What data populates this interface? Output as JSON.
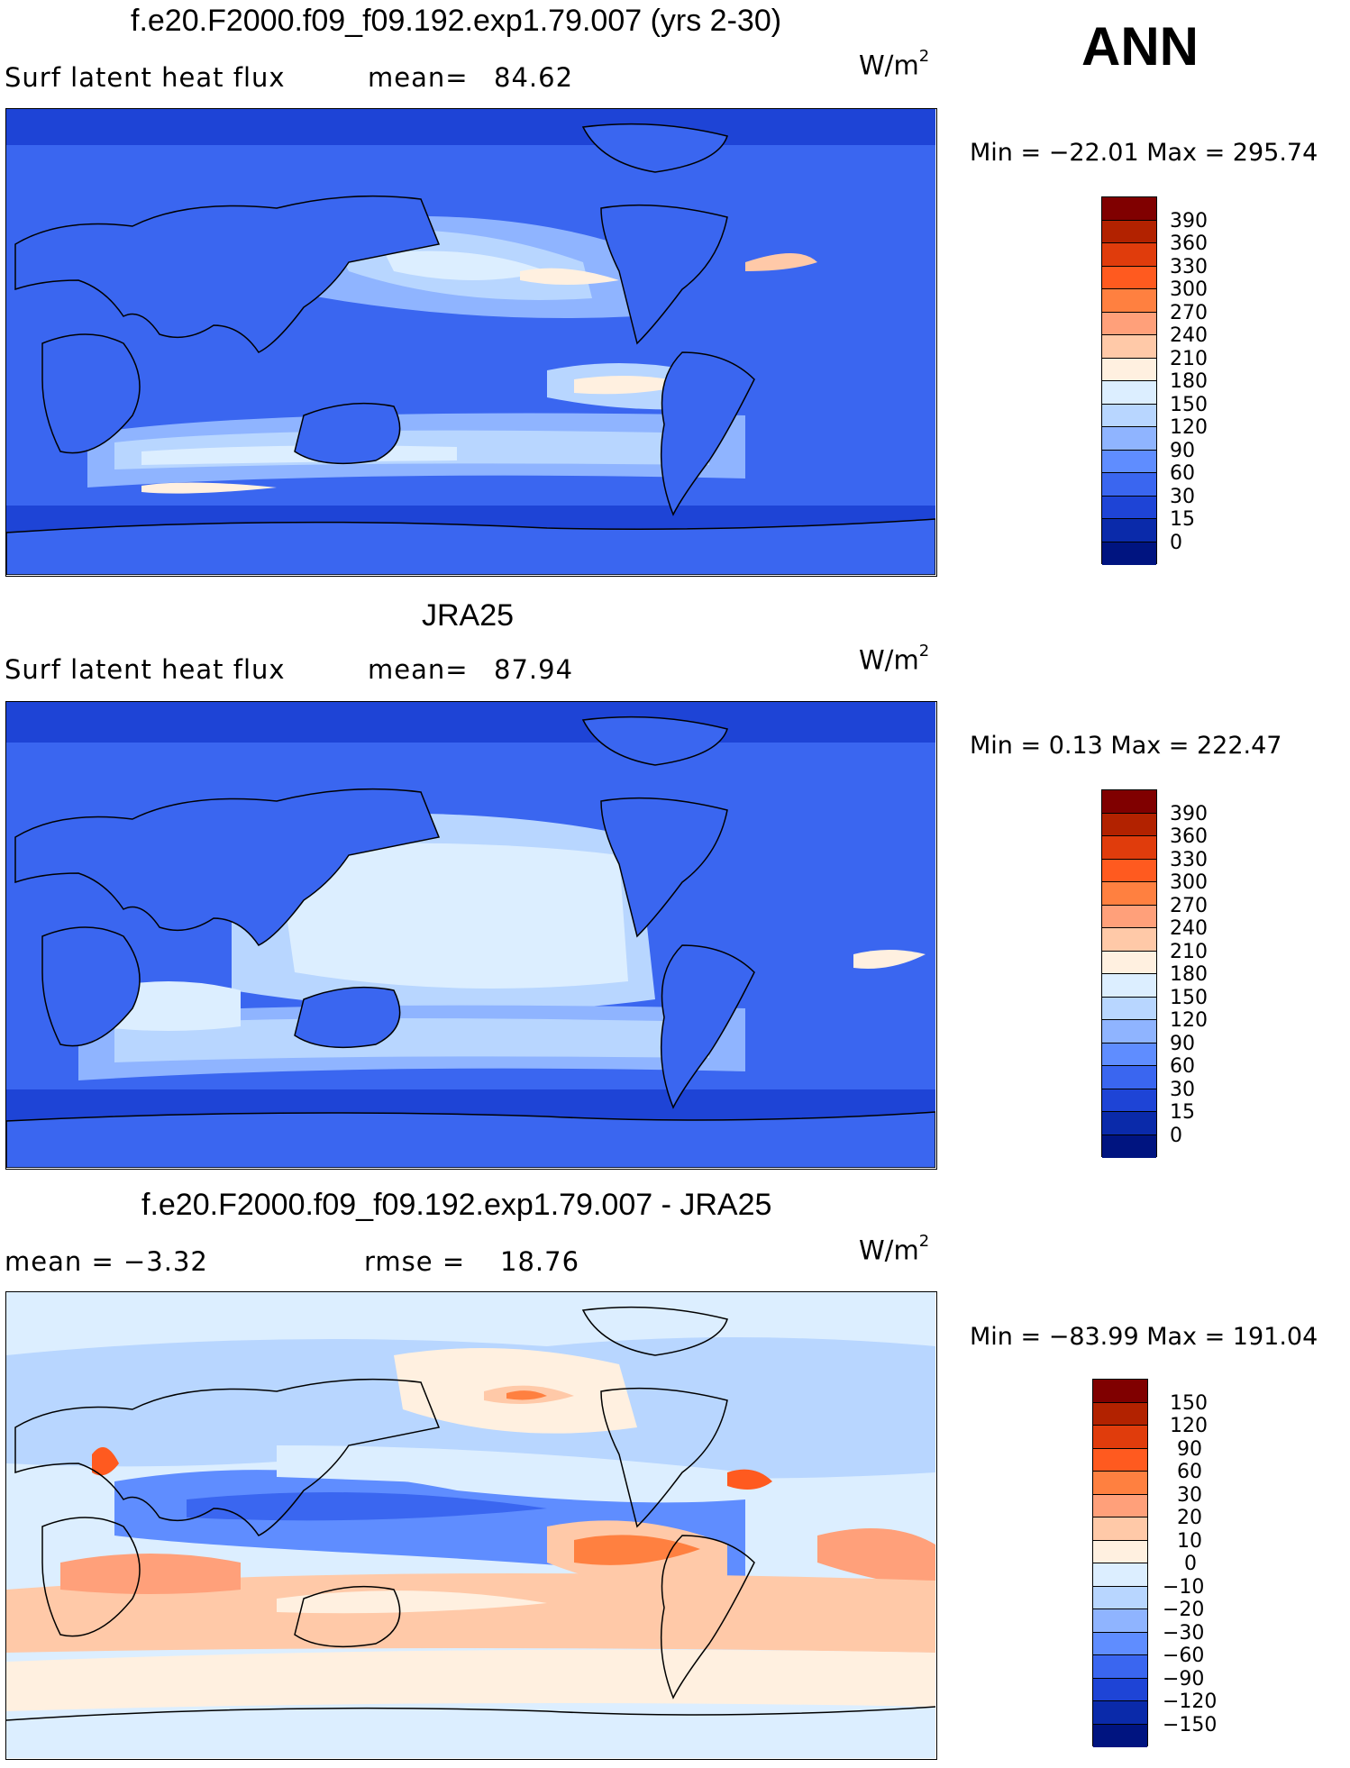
{
  "season_label": "ANN",
  "panels": [
    {
      "title": "f.e20.F2000.f09_f09.192.exp1.79.007 (yrs 2-30)",
      "left_text": "Surf latent heat flux",
      "stat_label": "mean=",
      "stat_value": "84.62",
      "units": "W/m",
      "units_exp": "2",
      "min_max": "Min = −22.01 Max = 295.74",
      "colorbar": {
        "labels": [
          "390",
          "360",
          "330",
          "300",
          "270",
          "240",
          "210",
          "180",
          "150",
          "120",
          "90",
          "60",
          "30",
          "15",
          "0"
        ],
        "colors": [
          "#800000",
          "#b22200",
          "#e03c0c",
          "#ff5a1f",
          "#ff8040",
          "#ffa07a",
          "#ffc9a8",
          "#fff0e0",
          "#dceeff",
          "#b8d6ff",
          "#8fb4ff",
          "#5f8dff",
          "#3a66f0",
          "#1e44d6",
          "#0a2aaa",
          "#001480"
        ]
      }
    },
    {
      "title": "JRA25",
      "left_text": "Surf latent heat flux",
      "stat_label": "mean=",
      "stat_value": "87.94",
      "units": "W/m",
      "units_exp": "2",
      "min_max": "Min =   0.13 Max = 222.47",
      "colorbar": {
        "labels": [
          "390",
          "360",
          "330",
          "300",
          "270",
          "240",
          "210",
          "180",
          "150",
          "120",
          "90",
          "60",
          "30",
          "15",
          "0"
        ],
        "colors": [
          "#800000",
          "#b22200",
          "#e03c0c",
          "#ff5a1f",
          "#ff8040",
          "#ffa07a",
          "#ffc9a8",
          "#fff0e0",
          "#dceeff",
          "#b8d6ff",
          "#8fb4ff",
          "#5f8dff",
          "#3a66f0",
          "#1e44d6",
          "#0a2aaa",
          "#001480"
        ]
      }
    },
    {
      "title": "f.e20.F2000.f09_f09.192.exp1.79.007 - JRA25",
      "left_text": "mean =   −3.32",
      "stat_label": "rmse =",
      "stat_value": "18.76",
      "units": "W/m",
      "units_exp": "2",
      "min_max": "Min = −83.99 Max = 191.04",
      "colorbar": {
        "labels": [
          "150",
          "120",
          "90",
          "60",
          "30",
          "20",
          "10",
          "0",
          "−10",
          "−20",
          "−30",
          "−60",
          "−90",
          "−120",
          "−150"
        ],
        "colors": [
          "#800000",
          "#b22200",
          "#e03c0c",
          "#ff5a1f",
          "#ff8040",
          "#ffa07a",
          "#ffc9a8",
          "#fff0e0",
          "#dceeff",
          "#b8d6ff",
          "#8fb4ff",
          "#5f8dff",
          "#3a66f0",
          "#1e44d6",
          "#0a2aaa",
          "#001480"
        ]
      }
    }
  ]
}
